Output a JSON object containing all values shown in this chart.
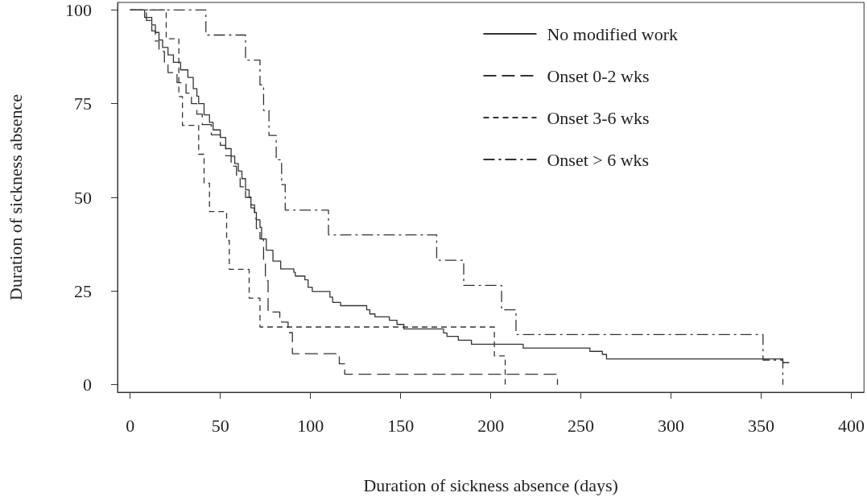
{
  "chart_data": {
    "type": "step",
    "xlabel": "Duration of sickness absence (days)",
    "ylabel": "Duration of sickness absence",
    "xlim": [
      -7,
      407
    ],
    "ylim": [
      -2,
      102
    ],
    "xticks": [
      0,
      50,
      100,
      150,
      200,
      250,
      300,
      350,
      400
    ],
    "yticks": [
      0,
      25,
      50,
      75,
      100
    ],
    "grid": false,
    "legend": "top right",
    "marker": "none",
    "series": [
      {
        "name": "No modified work",
        "color": "#333333",
        "line_style": "solid",
        "x": [
          0,
          8,
          12,
          14,
          16,
          18,
          21,
          24,
          28,
          32,
          35,
          37,
          38,
          41,
          44,
          46,
          50,
          53,
          56,
          58,
          60,
          62,
          64,
          66,
          67,
          69,
          70,
          72,
          72.9,
          75.5,
          79.2,
          83.5,
          90.8,
          91.6,
          96.9,
          98.7,
          101,
          110.8,
          112.3,
          116.7,
          131.2,
          132.9,
          135.8,
          143.8,
          148,
          151.8,
          173.8,
          175.7,
          182,
          189.3,
          218,
          255,
          261.9,
          264.2,
          362,
          365.5
        ],
        "values": [
          100,
          98,
          96,
          94,
          92,
          90,
          88,
          86,
          84,
          82,
          79,
          77,
          75,
          72,
          70,
          68,
          66,
          63,
          61,
          59,
          57,
          55,
          52,
          50,
          48,
          46,
          44,
          42,
          38.9,
          35.9,
          33,
          30.9,
          30,
          29,
          28,
          26,
          24.9,
          23.4,
          22,
          21.1,
          20,
          18.9,
          18.1,
          17.2,
          16.1,
          14.9,
          13.8,
          12.9,
          11.9,
          10.8,
          9.8,
          8.9,
          8.1,
          6.9,
          5.9,
          5.9
        ]
      },
      {
        "name": "Onset 0-2 wks",
        "color": "#333333",
        "line_style": "longdash",
        "x": [
          0,
          9,
          12,
          14,
          16,
          19,
          21,
          26,
          31,
          34,
          37,
          40,
          45,
          50,
          53,
          56,
          59,
          61,
          64,
          67,
          69,
          70,
          72,
          74,
          75,
          76.5,
          83,
          87.6,
          90,
          116,
          119,
          237
        ],
        "values": [
          100,
          97.2,
          94.4,
          91.7,
          88.9,
          86.1,
          83.3,
          80.6,
          77.8,
          75,
          72.2,
          69.4,
          66.7,
          63.9,
          61.1,
          58.3,
          55.6,
          52.8,
          50,
          47.2,
          44.4,
          41.7,
          38.9,
          33.3,
          27.8,
          19.4,
          16.7,
          13.9,
          8.3,
          5.6,
          2.8,
          0
        ]
      },
      {
        "name": "Onset 3-6 wks",
        "color": "#333333",
        "line_style": "dashed",
        "x": [
          0,
          20,
          27,
          29,
          38,
          41,
          44,
          53.5,
          55,
          66,
          72,
          202,
          208
        ],
        "values": [
          100,
          92.3,
          76.9,
          69.2,
          61.5,
          53.8,
          46.2,
          38.5,
          30.8,
          23.1,
          15.4,
          7.7,
          0
        ]
      },
      {
        "name": "Onset > 6 wks",
        "color": "#333333",
        "line_style": "dashdot",
        "x": [
          0,
          42,
          64,
          72,
          74,
          77,
          81,
          84,
          86,
          110,
          170,
          185,
          206,
          214,
          351,
          362
        ],
        "values": [
          100,
          93.3,
          86.6,
          80,
          73.2,
          66.5,
          60,
          53.4,
          46.6,
          40,
          33.2,
          26.5,
          20,
          13.4,
          6.6,
          0
        ]
      }
    ]
  }
}
